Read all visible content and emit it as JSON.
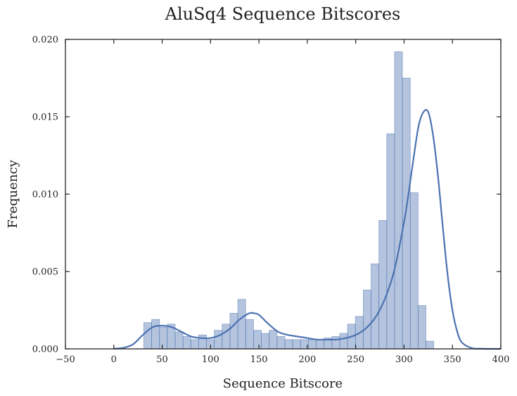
{
  "chart_data": {
    "type": "bar",
    "title": "AluSq4 Sequence Bitscores",
    "xlabel": "Sequence Bitscore",
    "ylabel": "Frequency",
    "xlim": [
      -50,
      400
    ],
    "ylim": [
      0,
      0.02
    ],
    "x_ticks": [
      "−50",
      "0",
      "50",
      "100",
      "150",
      "200",
      "250",
      "300",
      "350",
      "400"
    ],
    "x_tick_values": [
      -50,
      0,
      50,
      100,
      150,
      200,
      250,
      300,
      350,
      400
    ],
    "y_ticks": [
      "0.000",
      "0.005",
      "0.010",
      "0.015",
      "0.020"
    ],
    "y_tick_values": [
      0,
      0.005,
      0.01,
      0.015,
      0.02
    ],
    "grid": false,
    "bar_color": "#4c72b0",
    "line_color": "#4c72b0",
    "histogram": {
      "bin_start": 31,
      "bin_width": 8.1,
      "values": [
        0.0017,
        0.0019,
        0.0014,
        0.0016,
        0.0011,
        0.0008,
        0.0006,
        0.0009,
        0.0006,
        0.0012,
        0.0016,
        0.0023,
        0.0032,
        0.0019,
        0.0012,
        0.001,
        0.0012,
        0.0008,
        0.0006,
        0.0006,
        0.0006,
        0.0006,
        0.0006,
        0.0007,
        0.0008,
        0.001,
        0.0016,
        0.0021,
        0.0038,
        0.0055,
        0.0083,
        0.0139,
        0.0192,
        0.0175,
        0.0101,
        0.0028,
        0.0005
      ]
    },
    "kde": {
      "x": [
        0,
        10,
        20,
        30,
        40,
        50,
        60,
        70,
        80,
        90,
        100,
        110,
        120,
        130,
        140,
        145,
        150,
        160,
        170,
        180,
        190,
        200,
        210,
        220,
        230,
        240,
        250,
        260,
        270,
        280,
        290,
        300,
        305,
        310,
        315,
        320,
        325,
        330,
        335,
        340,
        345,
        350,
        355,
        360,
        370,
        380,
        390,
        400
      ],
      "y": [
        1e-05,
        7e-05,
        0.0003,
        0.0009,
        0.0014,
        0.0015,
        0.0014,
        0.0011,
        0.0008,
        0.0007,
        0.0007,
        0.0009,
        0.0013,
        0.0019,
        0.0023,
        0.0023,
        0.0022,
        0.0016,
        0.0011,
        0.0009,
        0.0008,
        0.0007,
        0.0006,
        0.0006,
        0.0006,
        0.0007,
        0.0009,
        0.0013,
        0.002,
        0.0032,
        0.0051,
        0.0082,
        0.0102,
        0.0124,
        0.0144,
        0.0153,
        0.0153,
        0.0138,
        0.0112,
        0.0079,
        0.0048,
        0.0025,
        0.0011,
        0.0004,
        5e-05,
        1e-05,
        0,
        0
      ]
    }
  }
}
